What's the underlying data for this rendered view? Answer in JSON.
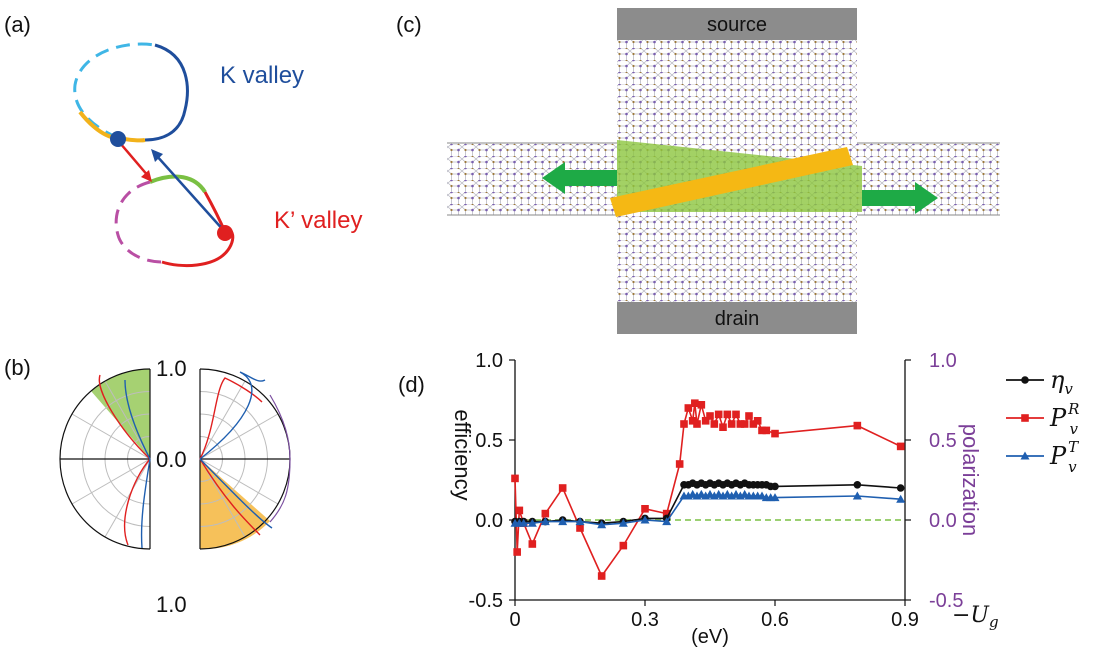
{
  "panels": {
    "a": {
      "label": "(a)",
      "k_label": "K valley",
      "kp_label": "K’ valley",
      "colors": {
        "k": "#1f4e9c",
        "kp": "#e02020",
        "cyan": "#3fb6e6",
        "magenta": "#b94fa4",
        "orange": "#f2b21b",
        "green": "#7ac043"
      }
    },
    "b": {
      "label": "(b)",
      "top_tick": "1.0",
      "mid_tick": "0.0",
      "bottom_tick": "1.0",
      "colors": {
        "green_fill": "#9ccc63",
        "orange_fill": "#f6c15a",
        "red": "#e02020",
        "blue": "#1f5fb0",
        "purple": "#7b4fa0"
      }
    },
    "c": {
      "label": "(c)",
      "source_label": "source",
      "drain_label": "drain",
      "colors": {
        "electrode": "#8c8c8c",
        "barrier": "#f5b814",
        "wedge": "#8cc63f",
        "arrow": "#1eaa46"
      }
    },
    "d": {
      "label": "(d)",
      "left_axis_label": "efficiency",
      "right_axis_label": "polarization",
      "x_unit": "(eV)",
      "x_symbol": "−U",
      "x_symbol_sub": "g",
      "legend": [
        {
          "symbol": "η",
          "sub": "v",
          "sup": "",
          "color": "#111111",
          "marker": "circle"
        },
        {
          "symbol": "P",
          "sub": "v",
          "sup": "R",
          "color": "#e02020",
          "marker": "square"
        },
        {
          "symbol": "P",
          "sub": "v",
          "sup": "T",
          "color": "#1f5fb0",
          "marker": "triangle"
        }
      ],
      "colors": {
        "right_axis": "#7b3f98",
        "zero_line": "#7ac043"
      }
    }
  },
  "chart_data": {
    "type": "line",
    "xlim": [
      0,
      0.9
    ],
    "ylim": [
      -0.5,
      1.0
    ],
    "xticks": [
      "0",
      "0.3",
      "0.6",
      "0.9"
    ],
    "yticks_left": [
      "-0.5",
      "0.0",
      "0.5",
      "1.0"
    ],
    "yticks_right": [
      "-0.5",
      "0.0",
      "0.5",
      "1.0"
    ],
    "xlabel": "(eV)",
    "ylabel_left": "efficiency",
    "ylabel_right": "polarization",
    "grid": false,
    "legend_position": "right",
    "series": [
      {
        "name": "η_v",
        "color": "#111111",
        "x": [
          0,
          0.01,
          0.02,
          0.04,
          0.07,
          0.11,
          0.15,
          0.2,
          0.25,
          0.3,
          0.35,
          0.39,
          0.4,
          0.41,
          0.42,
          0.43,
          0.44,
          0.45,
          0.46,
          0.47,
          0.48,
          0.49,
          0.5,
          0.51,
          0.52,
          0.53,
          0.54,
          0.55,
          0.56,
          0.57,
          0.58,
          0.59,
          0.6,
          0.79,
          0.89
        ],
        "y": [
          -0.01,
          -0.01,
          -0.01,
          -0.01,
          -0.01,
          0.0,
          -0.01,
          -0.02,
          -0.01,
          0.01,
          0.01,
          0.22,
          0.22,
          0.23,
          0.22,
          0.23,
          0.22,
          0.23,
          0.22,
          0.23,
          0.22,
          0.23,
          0.22,
          0.23,
          0.22,
          0.23,
          0.22,
          0.22,
          0.22,
          0.22,
          0.22,
          0.21,
          0.21,
          0.22,
          0.2
        ]
      },
      {
        "name": "P_v^R",
        "color": "#e02020",
        "x": [
          0,
          0.005,
          0.01,
          0.02,
          0.04,
          0.07,
          0.11,
          0.15,
          0.2,
          0.25,
          0.3,
          0.35,
          0.38,
          0.39,
          0.4,
          0.41,
          0.415,
          0.42,
          0.43,
          0.44,
          0.45,
          0.46,
          0.47,
          0.48,
          0.49,
          0.5,
          0.51,
          0.52,
          0.53,
          0.54,
          0.55,
          0.56,
          0.57,
          0.58,
          0.6,
          0.79,
          0.89
        ],
        "y": [
          0.26,
          -0.2,
          0.06,
          -0.02,
          -0.15,
          0.04,
          0.2,
          -0.05,
          -0.35,
          -0.16,
          0.07,
          0.04,
          0.35,
          0.6,
          0.7,
          0.62,
          0.73,
          0.6,
          0.72,
          0.62,
          0.65,
          0.6,
          0.66,
          0.58,
          0.66,
          0.6,
          0.66,
          0.6,
          0.6,
          0.65,
          0.6,
          0.62,
          0.56,
          0.56,
          0.54,
          0.59,
          0.46
        ]
      },
      {
        "name": "P_v^T",
        "color": "#1f5fb0",
        "x": [
          0,
          0.01,
          0.02,
          0.04,
          0.07,
          0.11,
          0.15,
          0.2,
          0.25,
          0.3,
          0.35,
          0.39,
          0.4,
          0.41,
          0.42,
          0.43,
          0.44,
          0.45,
          0.46,
          0.47,
          0.48,
          0.49,
          0.5,
          0.51,
          0.52,
          0.53,
          0.54,
          0.55,
          0.56,
          0.57,
          0.58,
          0.59,
          0.6,
          0.79,
          0.89
        ],
        "y": [
          -0.02,
          -0.02,
          -0.02,
          -0.02,
          -0.01,
          -0.01,
          -0.01,
          -0.03,
          -0.02,
          0.0,
          -0.01,
          0.15,
          0.15,
          0.16,
          0.15,
          0.16,
          0.15,
          0.16,
          0.15,
          0.16,
          0.15,
          0.16,
          0.15,
          0.16,
          0.15,
          0.16,
          0.15,
          0.15,
          0.15,
          0.15,
          0.14,
          0.14,
          0.14,
          0.15,
          0.13
        ]
      }
    ]
  }
}
